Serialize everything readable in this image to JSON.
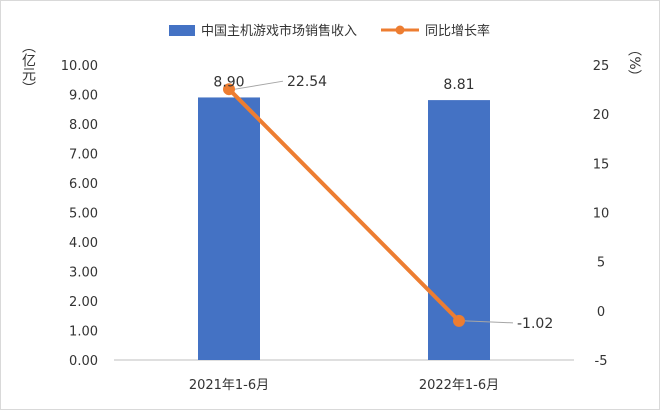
{
  "chart_data": {
    "type": "bar+line",
    "categories": [
      "2021年1-6月",
      "2022年1-6月"
    ],
    "series": [
      {
        "name": "中国主机游戏市场销售收入",
        "type": "bar",
        "axis": "left",
        "color": "#4472c4",
        "values": [
          8.9,
          8.81
        ],
        "labels": [
          "8.90",
          "8.81"
        ]
      },
      {
        "name": "同比增长率",
        "type": "line",
        "axis": "right",
        "color": "#ed7d31",
        "values": [
          22.54,
          -1.02
        ],
        "labels": [
          "22.54",
          "-1.02"
        ]
      }
    ],
    "y_left": {
      "unit_label": "（亿元）",
      "min": 0,
      "max": 10,
      "ticks": [
        "0.00",
        "1.00",
        "2.00",
        "3.00",
        "4.00",
        "5.00",
        "6.00",
        "7.00",
        "8.00",
        "9.00",
        "10.00"
      ]
    },
    "y_right": {
      "unit_label": "（%）",
      "min": -5,
      "max": 25,
      "ticks": [
        "-5",
        "0",
        "5",
        "10",
        "15",
        "20",
        "25"
      ]
    },
    "grid": false,
    "legend_position": "top"
  }
}
